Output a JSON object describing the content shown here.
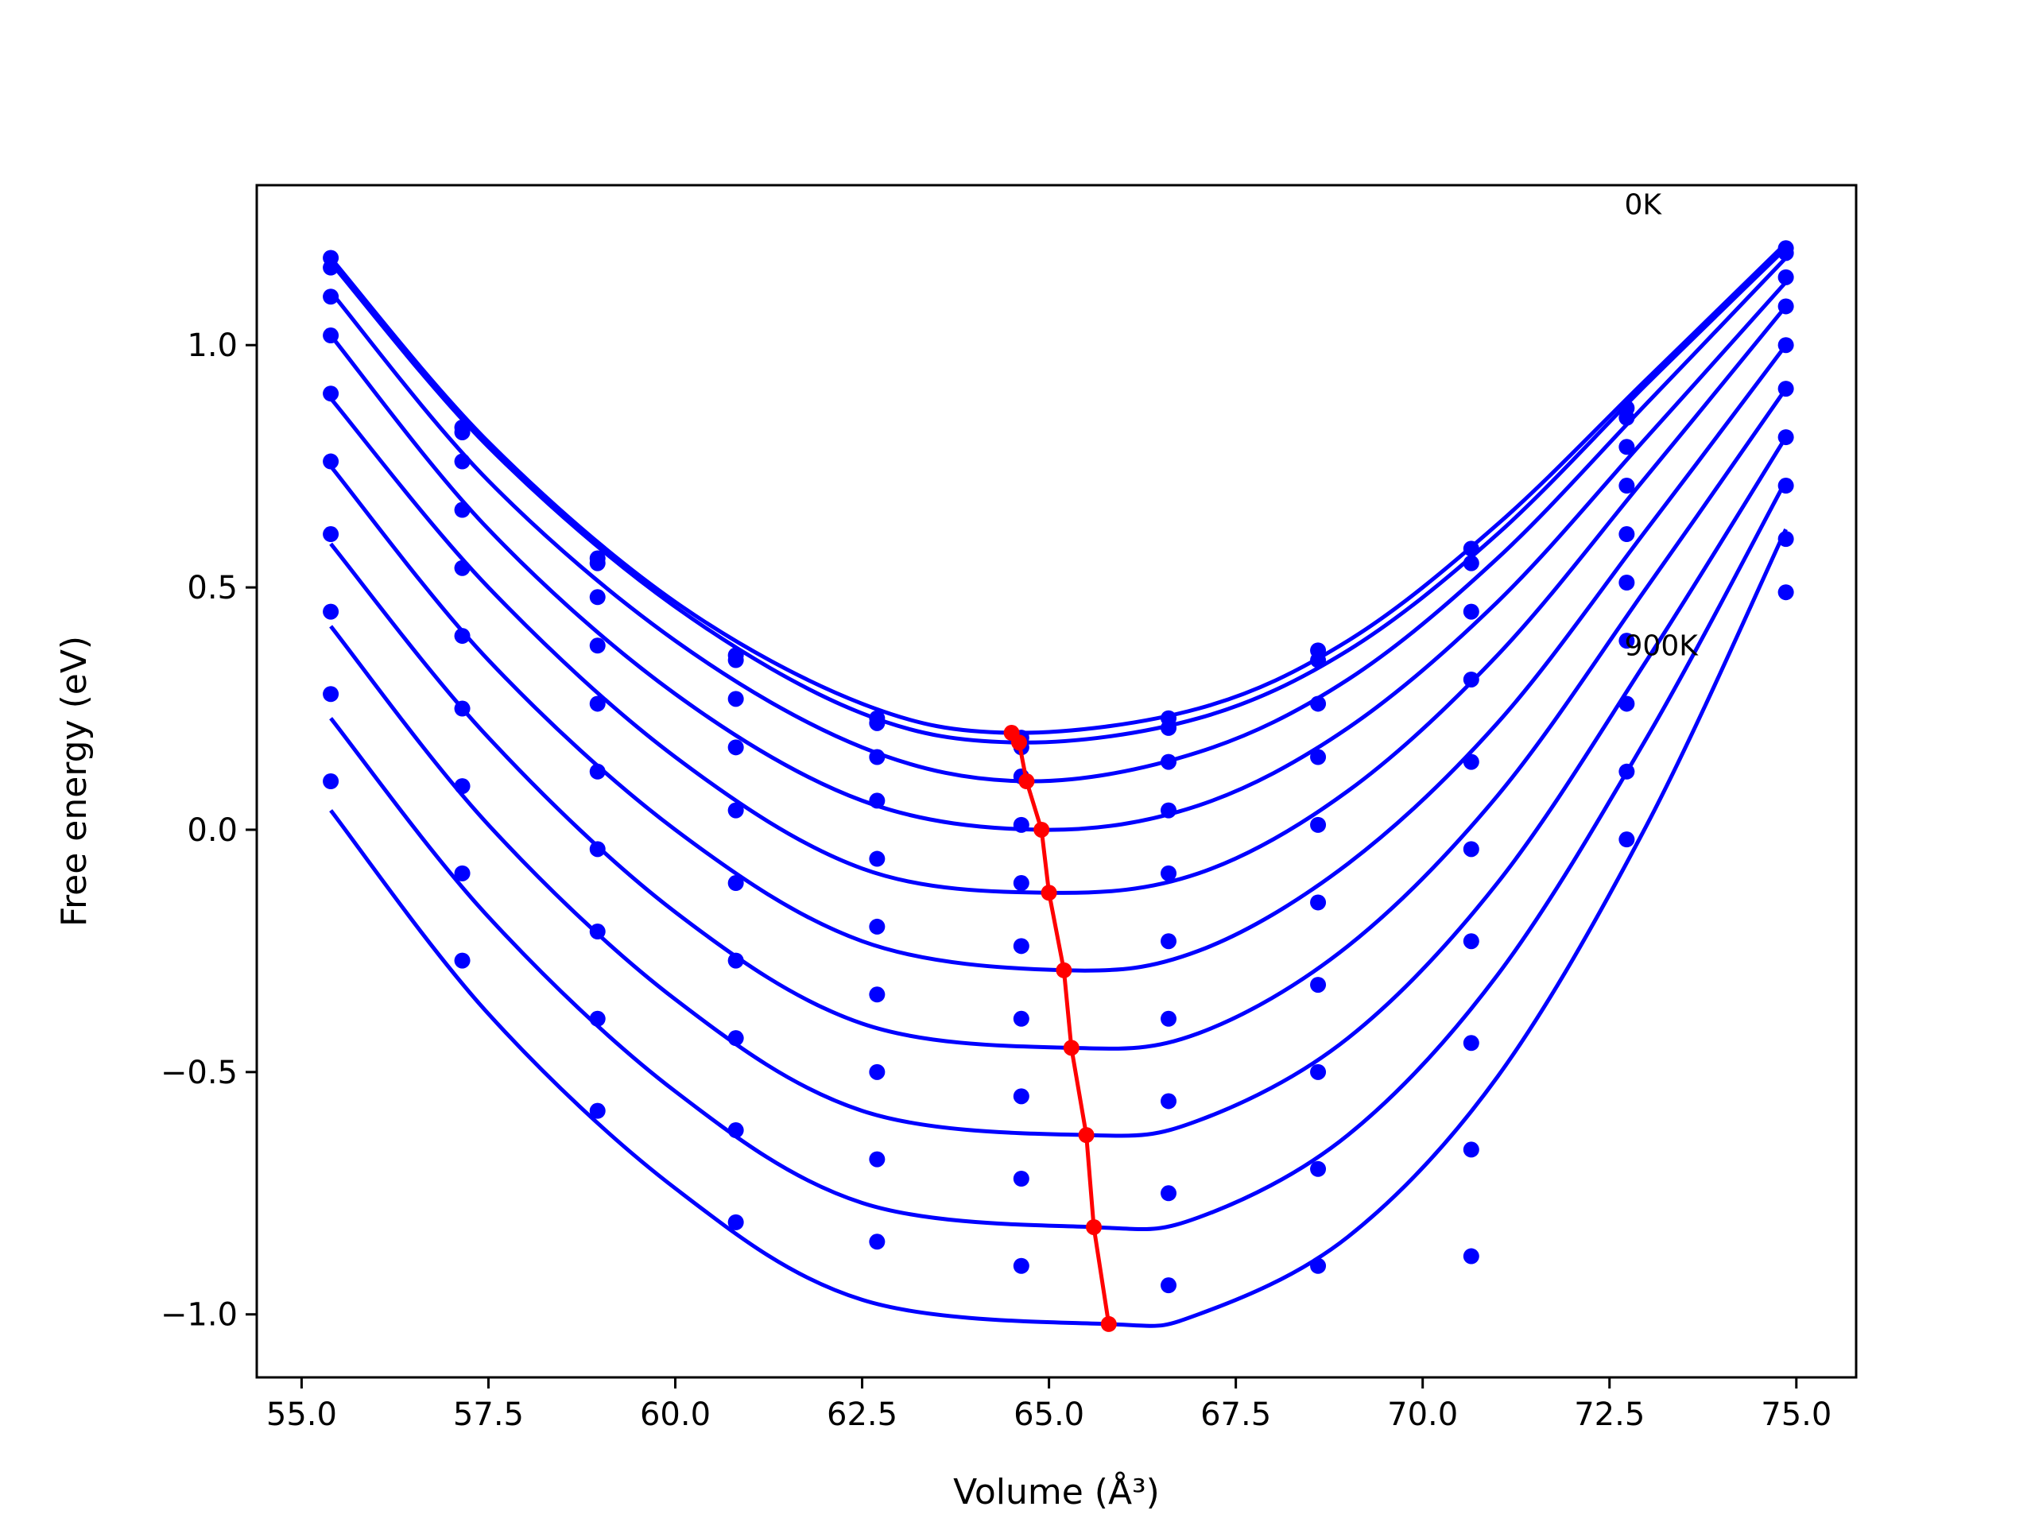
{
  "chart_data": {
    "type": "line",
    "title": "",
    "xlabel": "Volume (Å³)",
    "ylabel": "Free energy (eV)",
    "xlim": [
      54.4,
      75.8
    ],
    "ylim": [
      -1.13,
      1.33
    ],
    "x_ticks": [
      55.0,
      57.5,
      60.0,
      62.5,
      65.0,
      67.5,
      70.0,
      72.5,
      75.0
    ],
    "x_tick_labels": [
      "55.0",
      "57.5",
      "60.0",
      "62.5",
      "65.0",
      "67.5",
      "70.0",
      "72.5",
      "75.0"
    ],
    "y_ticks": [
      1.0,
      0.5,
      0.0,
      -0.5,
      -1.0
    ],
    "y_tick_labels": [
      "1.0",
      "0.5",
      "0.0",
      "−0.5",
      "−1.0"
    ],
    "grid": false,
    "colors": {
      "curves": "#0000ff",
      "points": "#0000ff",
      "minima": "#ff0000",
      "axes": "#000000"
    },
    "volumes": [
      55.39,
      57.15,
      58.96,
      60.81,
      62.7,
      64.63,
      66.6,
      68.6,
      70.65,
      72.73,
      74.86
    ],
    "series": [
      {
        "temperature_label": "0K",
        "points": [
          1.18,
          0.83,
          0.56,
          0.36,
          0.23,
          0.19,
          0.23,
          0.37,
          0.58,
          0.87,
          1.2
        ],
        "fit_min": [
          64.5,
          0.2
        ]
      },
      {
        "points": [
          1.16,
          0.82,
          0.55,
          0.35,
          0.22,
          0.17,
          0.21,
          0.35,
          0.55,
          0.85,
          1.19
        ],
        "fit_min": [
          64.6,
          0.18
        ]
      },
      {
        "points": [
          1.1,
          0.76,
          0.48,
          0.27,
          0.15,
          0.11,
          0.14,
          0.26,
          0.45,
          0.79,
          1.14
        ],
        "fit_min": [
          64.7,
          0.1
        ]
      },
      {
        "points": [
          1.02,
          0.66,
          0.38,
          0.17,
          0.06,
          0.01,
          0.04,
          0.15,
          0.31,
          0.71,
          1.08
        ],
        "fit_min": [
          64.9,
          0.0
        ]
      },
      {
        "points": [
          0.9,
          0.54,
          0.26,
          0.04,
          -0.06,
          -0.11,
          -0.09,
          0.01,
          0.14,
          0.61,
          1.0
        ],
        "fit_min": [
          65.0,
          -0.13
        ]
      },
      {
        "points": [
          0.76,
          0.4,
          0.12,
          -0.11,
          -0.2,
          -0.24,
          -0.23,
          -0.15,
          -0.04,
          0.51,
          0.91
        ],
        "fit_min": [
          65.2,
          -0.29
        ]
      },
      {
        "points": [
          0.61,
          0.25,
          -0.04,
          -0.27,
          -0.34,
          -0.39,
          -0.39,
          -0.32,
          -0.23,
          0.39,
          0.81
        ],
        "fit_min": [
          65.3,
          -0.45
        ]
      },
      {
        "points": [
          0.45,
          0.09,
          -0.21,
          -0.43,
          -0.5,
          -0.55,
          -0.56,
          -0.5,
          -0.44,
          0.26,
          0.71
        ],
        "fit_min": [
          65.5,
          -0.63
        ]
      },
      {
        "points": [
          0.28,
          -0.09,
          -0.39,
          -0.62,
          -0.68,
          -0.72,
          -0.75,
          -0.7,
          -0.66,
          0.12,
          0.6
        ],
        "fit_min": [
          65.6,
          -0.82
        ]
      },
      {
        "temperature_label": "900K",
        "points": [
          0.1,
          -0.27,
          -0.58,
          -0.81,
          -0.85,
          -0.9,
          -0.94,
          -0.9,
          -0.88,
          -0.02,
          0.49
        ],
        "fit_min": [
          65.8,
          -1.02
        ]
      }
    ],
    "fit_curves": [
      {
        "x": [
          55.39,
          57.5,
          60.0,
          62.5,
          64.5,
          67.0,
          69.0,
          71.0,
          73.0,
          74.86
        ],
        "y": [
          1.18,
          0.8,
          0.47,
          0.26,
          0.2,
          0.25,
          0.39,
          0.63,
          0.93,
          1.21
        ]
      },
      {
        "x": [
          55.39,
          57.5,
          60.0,
          62.5,
          64.6,
          67.0,
          69.0,
          71.0,
          73.0,
          74.86
        ],
        "y": [
          1.17,
          0.79,
          0.46,
          0.24,
          0.18,
          0.23,
          0.37,
          0.61,
          0.92,
          1.2
        ]
      },
      {
        "x": [
          55.39,
          57.5,
          60.0,
          62.5,
          64.7,
          67.0,
          69.0,
          71.0,
          73.0,
          74.86
        ],
        "y": [
          1.11,
          0.72,
          0.39,
          0.17,
          0.1,
          0.16,
          0.31,
          0.56,
          0.88,
          1.18
        ]
      },
      {
        "x": [
          55.39,
          57.5,
          60.0,
          62.5,
          64.9,
          67.0,
          69.0,
          71.0,
          73.0,
          74.86
        ],
        "y": [
          1.02,
          0.62,
          0.28,
          0.06,
          0.0,
          0.05,
          0.21,
          0.47,
          0.81,
          1.13
        ]
      },
      {
        "x": [
          55.39,
          57.5,
          60.0,
          62.5,
          65.0,
          67.0,
          69.0,
          71.0,
          73.0,
          74.86
        ],
        "y": [
          0.89,
          0.5,
          0.15,
          -0.08,
          -0.13,
          -0.09,
          0.08,
          0.36,
          0.73,
          1.08
        ]
      },
      {
        "x": [
          55.39,
          57.5,
          60.0,
          62.5,
          65.2,
          67.0,
          69.0,
          71.0,
          73.0,
          74.86
        ],
        "y": [
          0.75,
          0.35,
          0.0,
          -0.23,
          -0.29,
          -0.25,
          -0.07,
          0.22,
          0.62,
          1.0
        ]
      },
      {
        "x": [
          55.39,
          57.5,
          60.0,
          62.5,
          65.3,
          67.0,
          69.0,
          71.0,
          73.0,
          74.86
        ],
        "y": [
          0.59,
          0.19,
          -0.17,
          -0.4,
          -0.45,
          -0.42,
          -0.24,
          0.07,
          0.5,
          0.91
        ]
      },
      {
        "x": [
          55.39,
          57.5,
          60.0,
          62.5,
          65.5,
          67.0,
          69.0,
          71.0,
          73.0,
          74.86
        ],
        "y": [
          0.42,
          0.01,
          -0.35,
          -0.58,
          -0.63,
          -0.6,
          -0.43,
          -0.11,
          0.35,
          0.81
        ]
      },
      {
        "x": [
          55.39,
          57.5,
          60.0,
          62.5,
          65.6,
          67.0,
          69.0,
          71.0,
          73.0,
          74.86
        ],
        "y": [
          0.23,
          -0.18,
          -0.54,
          -0.77,
          -0.82,
          -0.8,
          -0.63,
          -0.3,
          0.19,
          0.72
        ]
      },
      {
        "x": [
          55.39,
          57.5,
          60.0,
          62.5,
          65.8,
          67.0,
          69.0,
          71.0,
          73.0,
          74.86
        ],
        "y": [
          0.04,
          -0.38,
          -0.74,
          -0.97,
          -1.02,
          -1.0,
          -0.84,
          -0.51,
          0.01,
          0.62
        ]
      }
    ],
    "minima_line": {
      "x": [
        64.5,
        64.6,
        64.7,
        64.9,
        65.0,
        65.2,
        65.3,
        65.5,
        65.6,
        65.8
      ],
      "y": [
        0.2,
        0.18,
        0.1,
        0.0,
        -0.13,
        -0.29,
        -0.45,
        -0.63,
        -0.82,
        -1.02
      ]
    },
    "annotations": [
      {
        "text": "0K",
        "x": 72.7,
        "y": 1.27
      },
      {
        "text": "900K",
        "x": 72.7,
        "y": 0.36
      }
    ]
  }
}
